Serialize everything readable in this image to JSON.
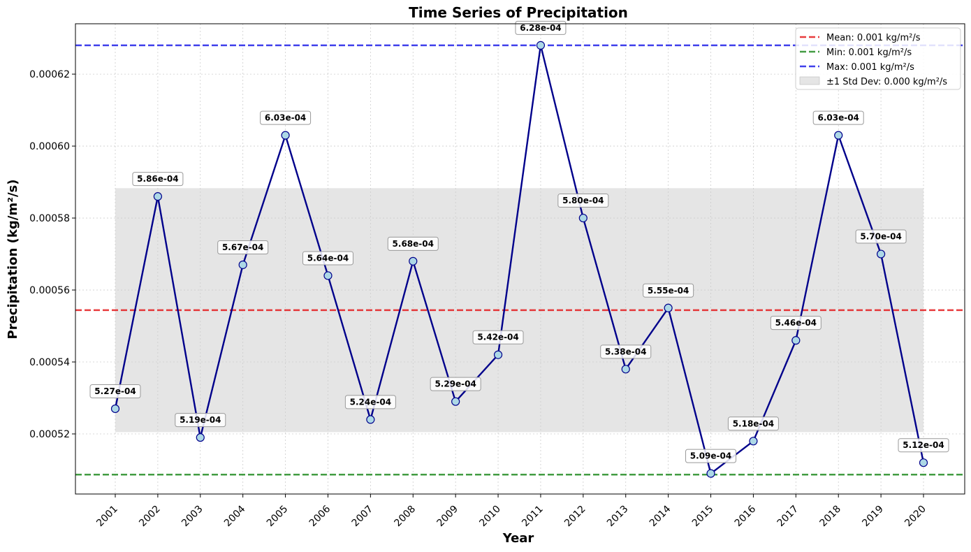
{
  "chart_data": {
    "type": "line",
    "title": "Time Series of Precipitation",
    "xlabel": "Year",
    "ylabel": "Precipitation (kg/m²/s)",
    "x": [
      "2001",
      "2002",
      "2003",
      "2004",
      "2005",
      "2006",
      "2007",
      "2008",
      "2009",
      "2010",
      "2011",
      "2012",
      "2013",
      "2014",
      "2015",
      "2016",
      "2017",
      "2018",
      "2019",
      "2020"
    ],
    "series": [
      {
        "name": "",
        "values": [
          0.000527,
          0.000586,
          0.000519,
          0.000567,
          0.000603,
          0.000564,
          0.000524,
          0.000568,
          0.000529,
          0.000542,
          0.000628,
          0.00058,
          0.000538,
          0.000555,
          0.000509,
          0.000518,
          0.000546,
          0.000603,
          0.00057,
          0.000512
        ],
        "line_color": "#00008b",
        "marker_color": "#add8e6"
      }
    ],
    "data_labels": [
      "5.27e-04",
      "5.86e-04",
      "5.19e-04",
      "5.67e-04",
      "6.03e-04",
      "5.64e-04",
      "5.24e-04",
      "5.68e-04",
      "5.29e-04",
      "5.42e-04",
      "6.28e-04",
      "5.80e-04",
      "5.38e-04",
      "5.55e-04",
      "5.09e-04",
      "5.18e-04",
      "5.46e-04",
      "6.03e-04",
      "5.70e-04",
      "5.12e-04"
    ],
    "yticks": [
      {
        "value": 0.00052,
        "label": "0.00052"
      },
      {
        "value": 0.00054,
        "label": "0.00054"
      },
      {
        "value": 0.00056,
        "label": "0.00056"
      },
      {
        "value": 0.00058,
        "label": "0.00058"
      },
      {
        "value": 0.0006,
        "label": "0.00060"
      },
      {
        "value": 0.00062,
        "label": "0.00062"
      }
    ],
    "ylim": [
      0.0005033,
      0.000634
    ],
    "reference_lines": [
      {
        "label": "Mean: 0.001 kg/m²/s",
        "value": 0.0005544,
        "color": "#e41a1c"
      },
      {
        "label": "Min: 0.001 kg/m²/s",
        "value": 0.0005087,
        "color": "#228b22"
      },
      {
        "label": "Max: 0.001 kg/m²/s",
        "value": 0.000628,
        "color": "#1f1fe8"
      }
    ],
    "std_band": {
      "label": "±1 Std Dev: 0.000 kg/m²/s",
      "low": 0.0005205,
      "high": 0.0005883,
      "color": "#d3d3d3"
    },
    "grid": true,
    "legend_position": "top-right"
  }
}
